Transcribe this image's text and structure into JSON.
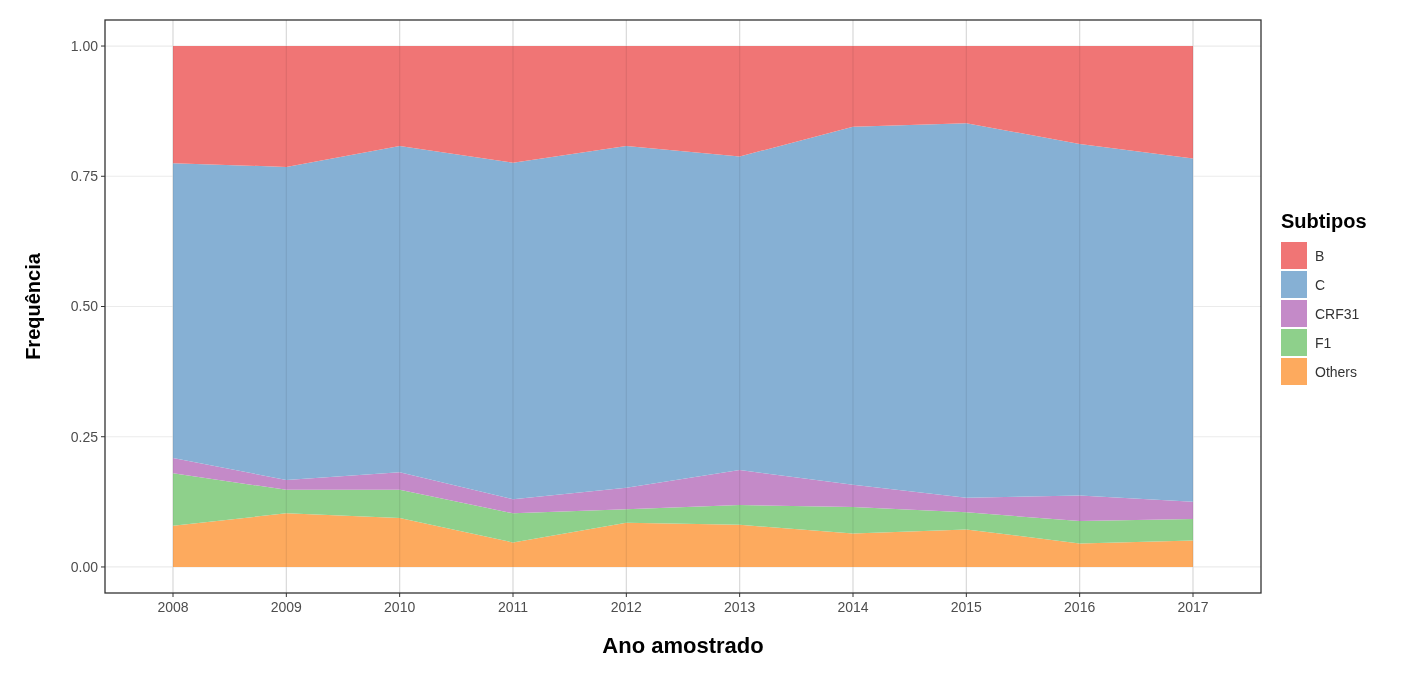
{
  "chart_data": {
    "type": "area",
    "stacked": true,
    "xlabel": "Ano amostrado",
    "ylabel": "Frequência",
    "legend_title": "Subtipos",
    "legend": "right",
    "grid": true,
    "x": [
      2008,
      2009,
      2010,
      2011,
      2012,
      2013,
      2014,
      2015,
      2016,
      2017
    ],
    "xlim": [
      2007.4,
      2017.6
    ],
    "xticks": [
      2008,
      2009,
      2010,
      2011,
      2012,
      2013,
      2014,
      2015,
      2016,
      2017
    ],
    "ylim": [
      -0.05,
      1.05
    ],
    "yticks": [
      {
        "value": 0,
        "label": "0.00"
      },
      {
        "value": 0.25,
        "label": "0.25"
      },
      {
        "value": 0.5,
        "label": "0.50"
      },
      {
        "value": 0.75,
        "label": "0.75"
      },
      {
        "value": 1,
        "label": "1.00"
      }
    ],
    "series": [
      {
        "name": "Others",
        "color": "#fdaa5e",
        "values": [
          0.079,
          0.103,
          0.094,
          0.047,
          0.085,
          0.081,
          0.064,
          0.072,
          0.045,
          0.051
        ]
      },
      {
        "name": "F1",
        "color": "#8ed08b",
        "values": [
          0.101,
          0.045,
          0.054,
          0.056,
          0.026,
          0.038,
          0.051,
          0.033,
          0.043,
          0.041
        ]
      },
      {
        "name": "CRF31",
        "color": "#c48ac8",
        "values": [
          0.029,
          0.019,
          0.034,
          0.027,
          0.041,
          0.067,
          0.043,
          0.028,
          0.049,
          0.033
        ]
      },
      {
        "name": "C",
        "color": "#86b0d4",
        "values": [
          0.566,
          0.601,
          0.626,
          0.646,
          0.656,
          0.602,
          0.687,
          0.719,
          0.675,
          0.659
        ]
      },
      {
        "name": "B",
        "color": "#f07575",
        "values": [
          0.225,
          0.232,
          0.192,
          0.224,
          0.192,
          0.212,
          0.155,
          0.148,
          0.188,
          0.216
        ]
      }
    ]
  }
}
